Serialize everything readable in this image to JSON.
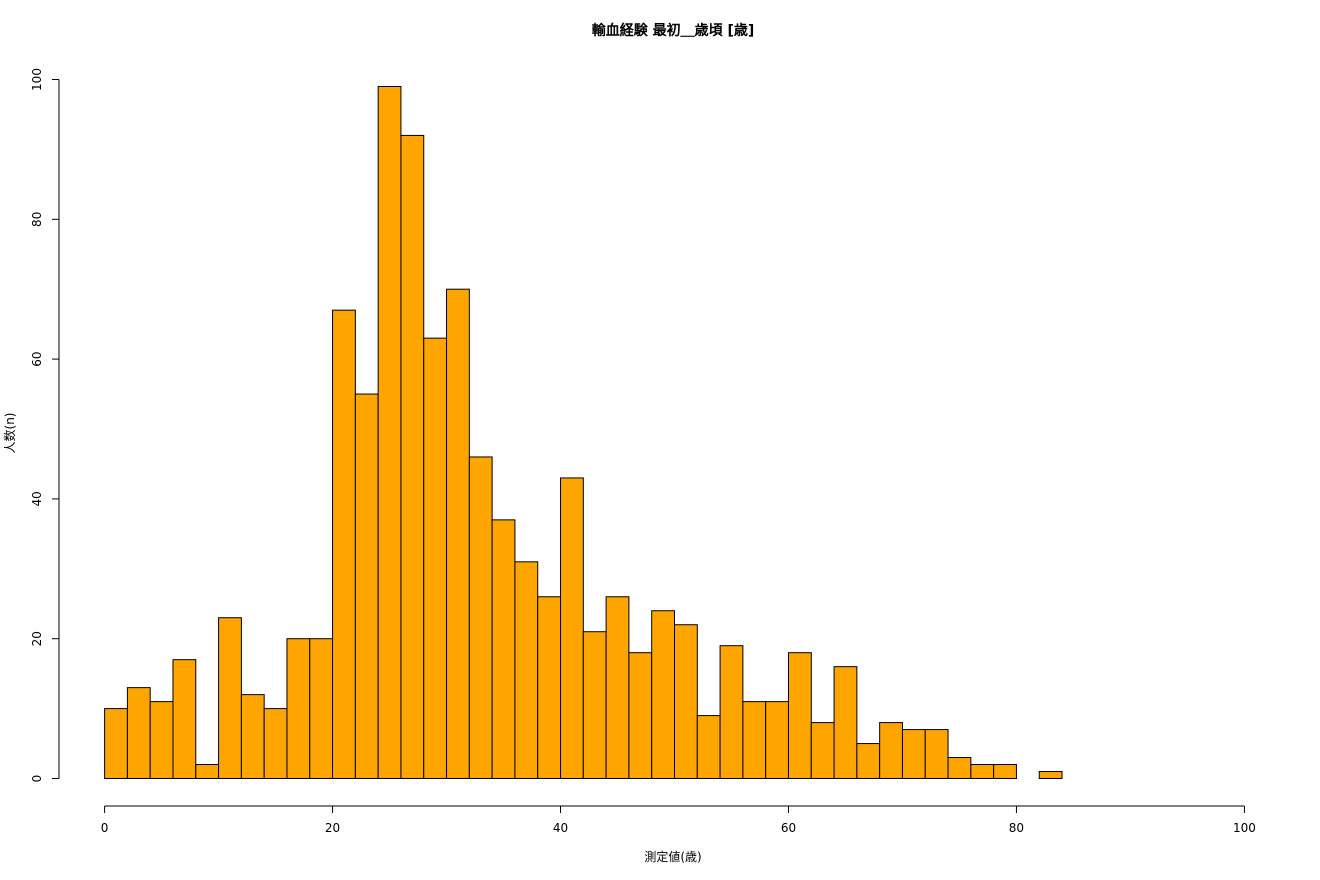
{
  "chart_data": {
    "type": "bar",
    "title": "輸血経験 最初＿歳頃 [歳]",
    "xlabel": "測定値(歳)",
    "ylabel": "人数(n)",
    "xlim": [
      0,
      100
    ],
    "ylim": [
      0,
      100
    ],
    "x_ticks": [
      "0",
      "20",
      "40",
      "60",
      "80",
      "100"
    ],
    "y_ticks": [
      "0",
      "20",
      "40",
      "60",
      "80",
      "100"
    ],
    "bin_width": 2,
    "bins_start": [
      0,
      2,
      4,
      6,
      8,
      10,
      12,
      14,
      16,
      18,
      20,
      22,
      24,
      26,
      28,
      30,
      32,
      34,
      36,
      38,
      40,
      42,
      44,
      46,
      48,
      50,
      52,
      54,
      56,
      58,
      60,
      62,
      64,
      66,
      68,
      70,
      72,
      74,
      76,
      78,
      80,
      82
    ],
    "values": [
      10,
      13,
      11,
      17,
      2,
      23,
      12,
      10,
      20,
      20,
      67,
      55,
      99,
      92,
      63,
      70,
      46,
      37,
      31,
      26,
      43,
      21,
      26,
      18,
      24,
      22,
      9,
      19,
      11,
      11,
      18,
      8,
      16,
      5,
      8,
      7,
      7,
      3,
      2,
      2,
      0,
      1
    ],
    "bar_color": "#FFA500",
    "bar_border_color": "#000000",
    "grid": false
  }
}
